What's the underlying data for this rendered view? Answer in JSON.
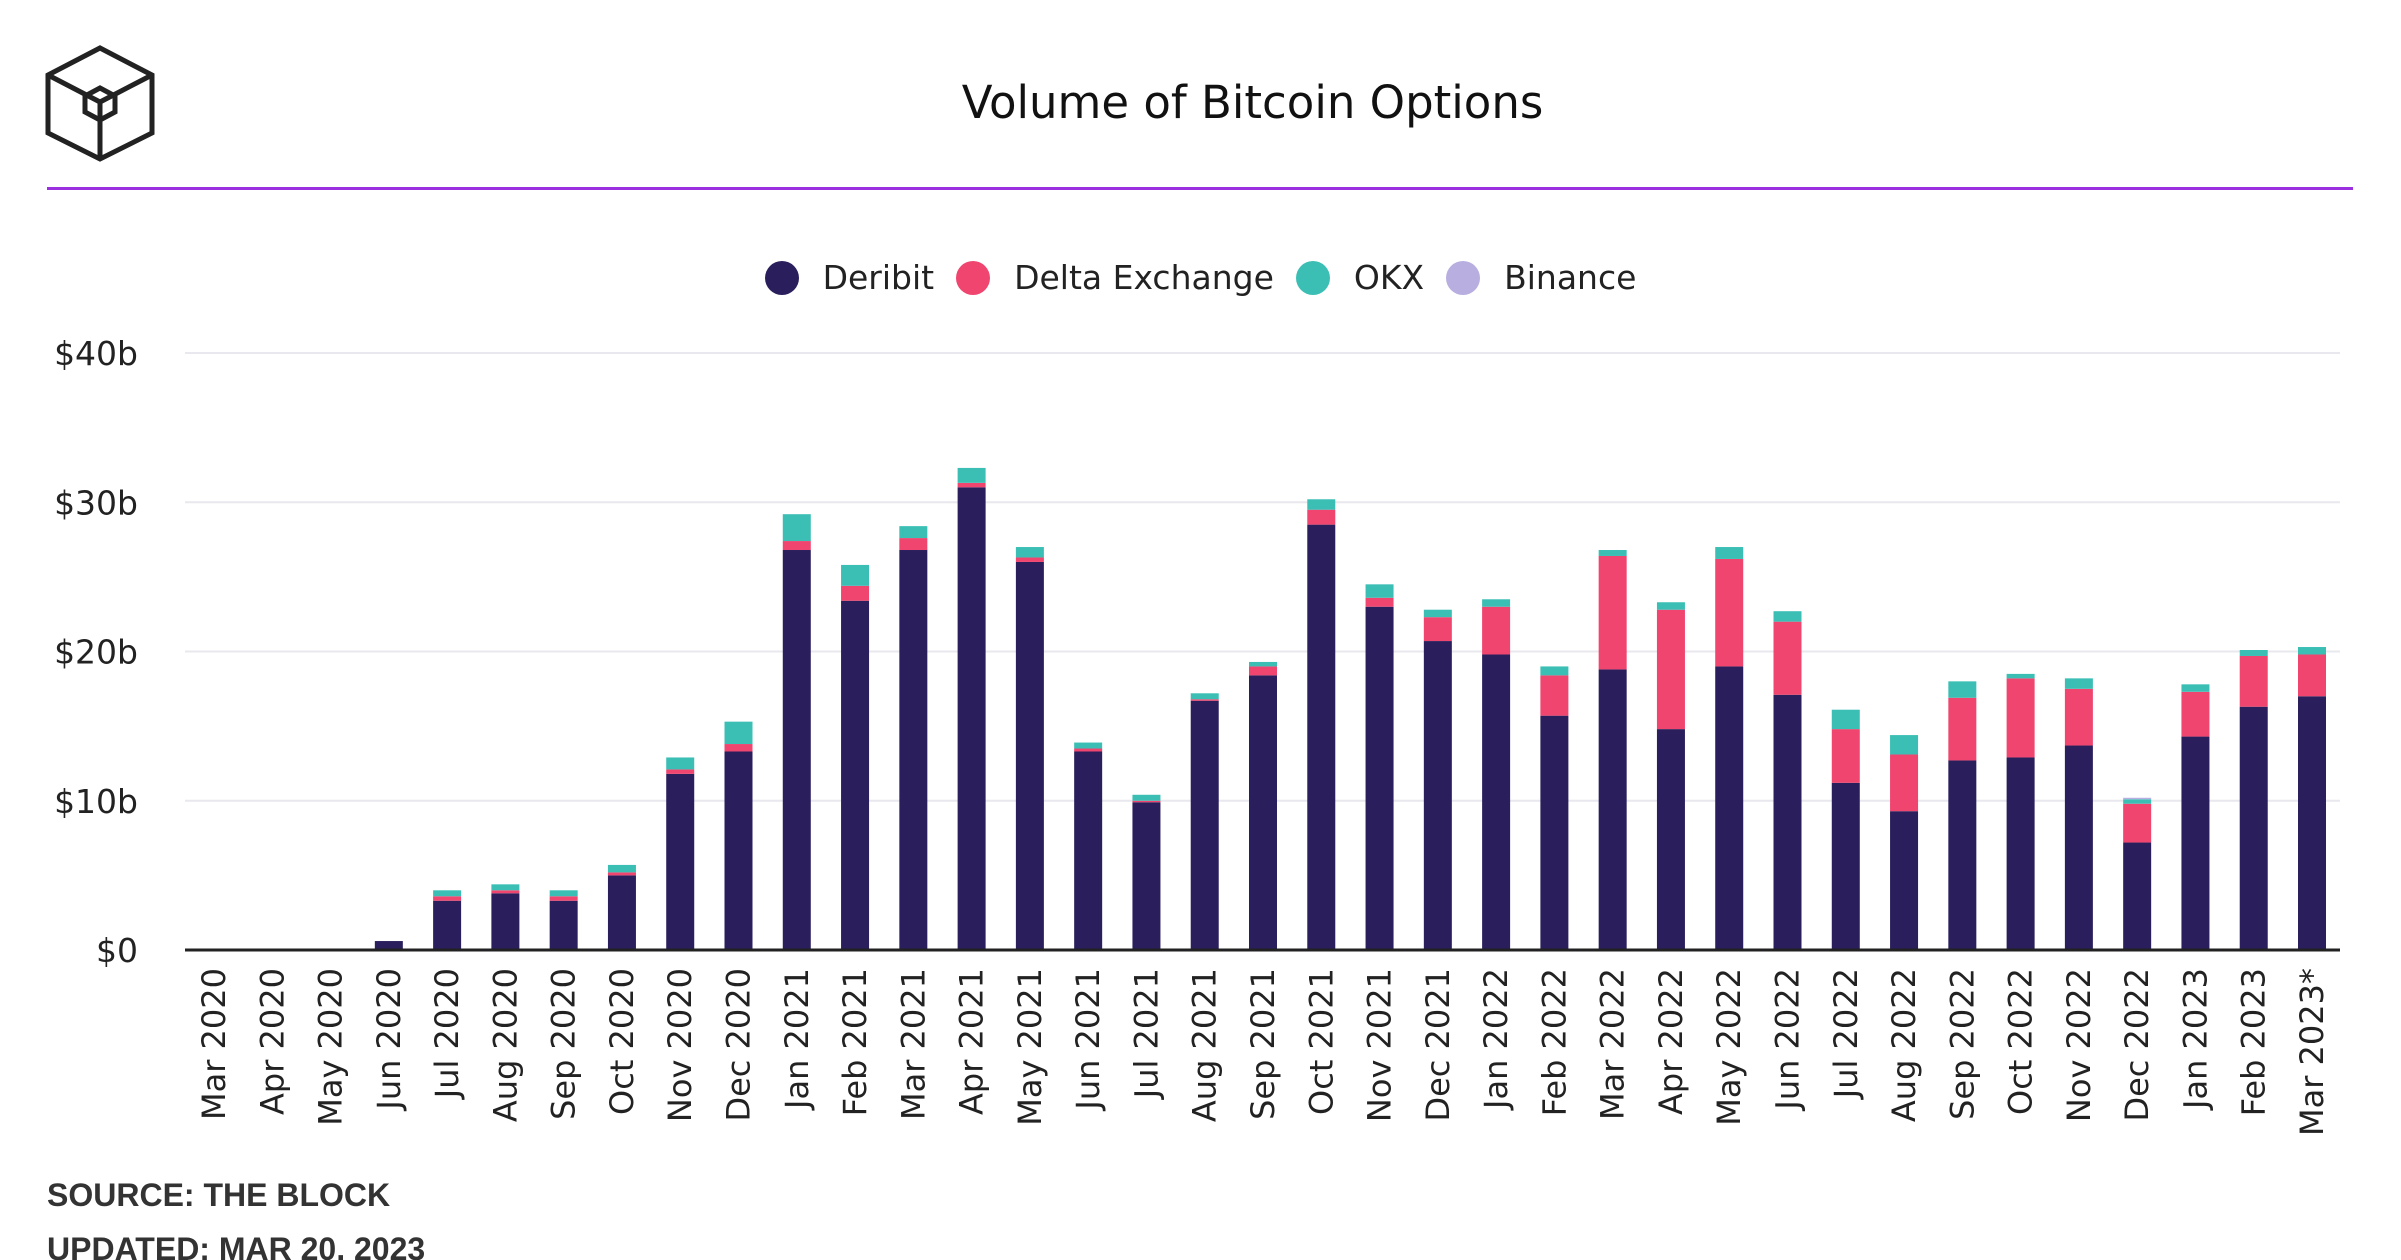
{
  "header": {
    "title": "Volume of Bitcoin Options",
    "logo_icon": "the-block-cube-logo"
  },
  "footer": {
    "source": "SOURCE: THE BLOCK",
    "updated": "UPDATED: MAR 20, 2023"
  },
  "colors": {
    "accent_rule": "#9b30e0",
    "deribit": "#2a1f5c",
    "delta_exchange": "#ef456f",
    "okx": "#3bbfb5",
    "binance": "#b8aee0"
  },
  "chart_data": {
    "type": "bar",
    "stacked": true,
    "title": "Volume of Bitcoin Options",
    "xlabel": "",
    "ylabel": "",
    "ylim": [
      0,
      40
    ],
    "yticks": [
      0,
      10,
      20,
      30,
      40
    ],
    "ytick_labels": [
      "$0",
      "$10b",
      "$20b",
      "$30b",
      "$40b"
    ],
    "grid": true,
    "legend_position": "top-center",
    "categories": [
      "Mar 2020",
      "Apr 2020",
      "May 2020",
      "Jun 2020",
      "Jul 2020",
      "Aug 2020",
      "Sep 2020",
      "Oct 2020",
      "Nov 2020",
      "Dec 2020",
      "Jan 2021",
      "Feb 2021",
      "Mar 2021",
      "Apr 2021",
      "May 2021",
      "Jun 2021",
      "Jul 2021",
      "Aug 2021",
      "Sep 2021",
      "Oct 2021",
      "Nov 2021",
      "Dec 2021",
      "Jan 2022",
      "Feb 2022",
      "Mar 2022",
      "Apr 2022",
      "May 2022",
      "Jun 2022",
      "Jul 2022",
      "Aug 2022",
      "Sep 2022",
      "Oct 2022",
      "Nov 2022",
      "Dec 2022",
      "Jan 2023",
      "Feb 2023",
      "Mar 2023*"
    ],
    "series": [
      {
        "name": "Deribit",
        "color": "#2a1f5c",
        "values": [
          0,
          0,
          0,
          0.6,
          3.3,
          3.8,
          3.3,
          5.0,
          11.8,
          13.3,
          26.8,
          23.4,
          26.8,
          31.0,
          26.0,
          13.3,
          9.9,
          16.7,
          18.4,
          28.5,
          23.0,
          20.7,
          19.8,
          15.7,
          18.8,
          14.8,
          19.0,
          17.1,
          11.2,
          9.3,
          12.7,
          12.9,
          13.7,
          7.2,
          14.3,
          16.3,
          17.0
        ]
      },
      {
        "name": "Delta Exchange",
        "color": "#ef456f",
        "values": [
          0,
          0,
          0,
          0,
          0.3,
          0.2,
          0.3,
          0.2,
          0.3,
          0.5,
          0.6,
          1.0,
          0.8,
          0.3,
          0.3,
          0.2,
          0.1,
          0.1,
          0.6,
          1.0,
          0.6,
          1.6,
          3.2,
          2.7,
          7.6,
          8.0,
          7.2,
          4.9,
          3.6,
          3.8,
          4.2,
          5.3,
          3.8,
          2.6,
          3.0,
          3.4,
          2.8
        ]
      },
      {
        "name": "OKX",
        "color": "#3bbfb5",
        "values": [
          0,
          0,
          0,
          0,
          0.4,
          0.4,
          0.4,
          0.5,
          0.8,
          1.5,
          1.8,
          1.4,
          0.8,
          1.0,
          0.7,
          0.4,
          0.4,
          0.4,
          0.3,
          0.7,
          0.9,
          0.5,
          0.5,
          0.6,
          0.4,
          0.5,
          0.8,
          0.7,
          1.3,
          1.3,
          1.1,
          0.3,
          0.7,
          0.3,
          0.5,
          0.4,
          0.5
        ]
      },
      {
        "name": "Binance",
        "color": "#b8aee0",
        "values": [
          0,
          0,
          0,
          0,
          0,
          0,
          0,
          0,
          0,
          0,
          0,
          0,
          0,
          0,
          0,
          0,
          0,
          0,
          0,
          0,
          0,
          0,
          0,
          0,
          0,
          0,
          0,
          0,
          0,
          0,
          0,
          0,
          0,
          0.1,
          0,
          0,
          0
        ]
      }
    ]
  }
}
